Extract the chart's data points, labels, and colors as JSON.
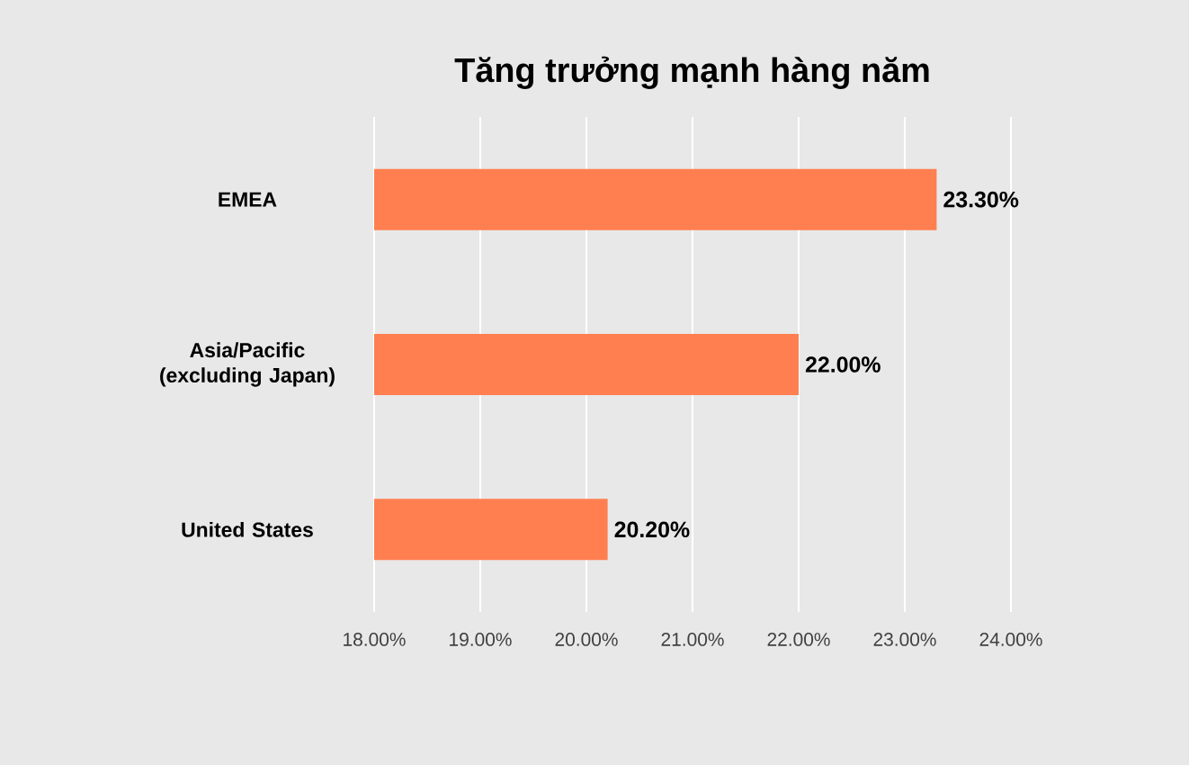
{
  "chart_data": {
    "type": "bar",
    "orientation": "horizontal",
    "title": "Tăng trưởng mạnh hàng năm",
    "categories": [
      "EMEA",
      "Asia/Pacific (excluding Japan)",
      "United States"
    ],
    "values": [
      23.3,
      22.0,
      20.2
    ],
    "value_labels": [
      "23.30%",
      "22.00%",
      "20.20%"
    ],
    "color": "#ff7f50",
    "xlim": [
      18,
      24
    ],
    "xticks": [
      {
        "value": 18,
        "label": "18.00%"
      },
      {
        "value": 19,
        "label": "19.00%"
      },
      {
        "value": 20,
        "label": "20.00%"
      },
      {
        "value": 21,
        "label": "21.00%"
      },
      {
        "value": 22,
        "label": "22.00%"
      },
      {
        "value": 23,
        "label": "23.00%"
      },
      {
        "value": 24,
        "label": "24.00%"
      }
    ],
    "grid": "x"
  }
}
